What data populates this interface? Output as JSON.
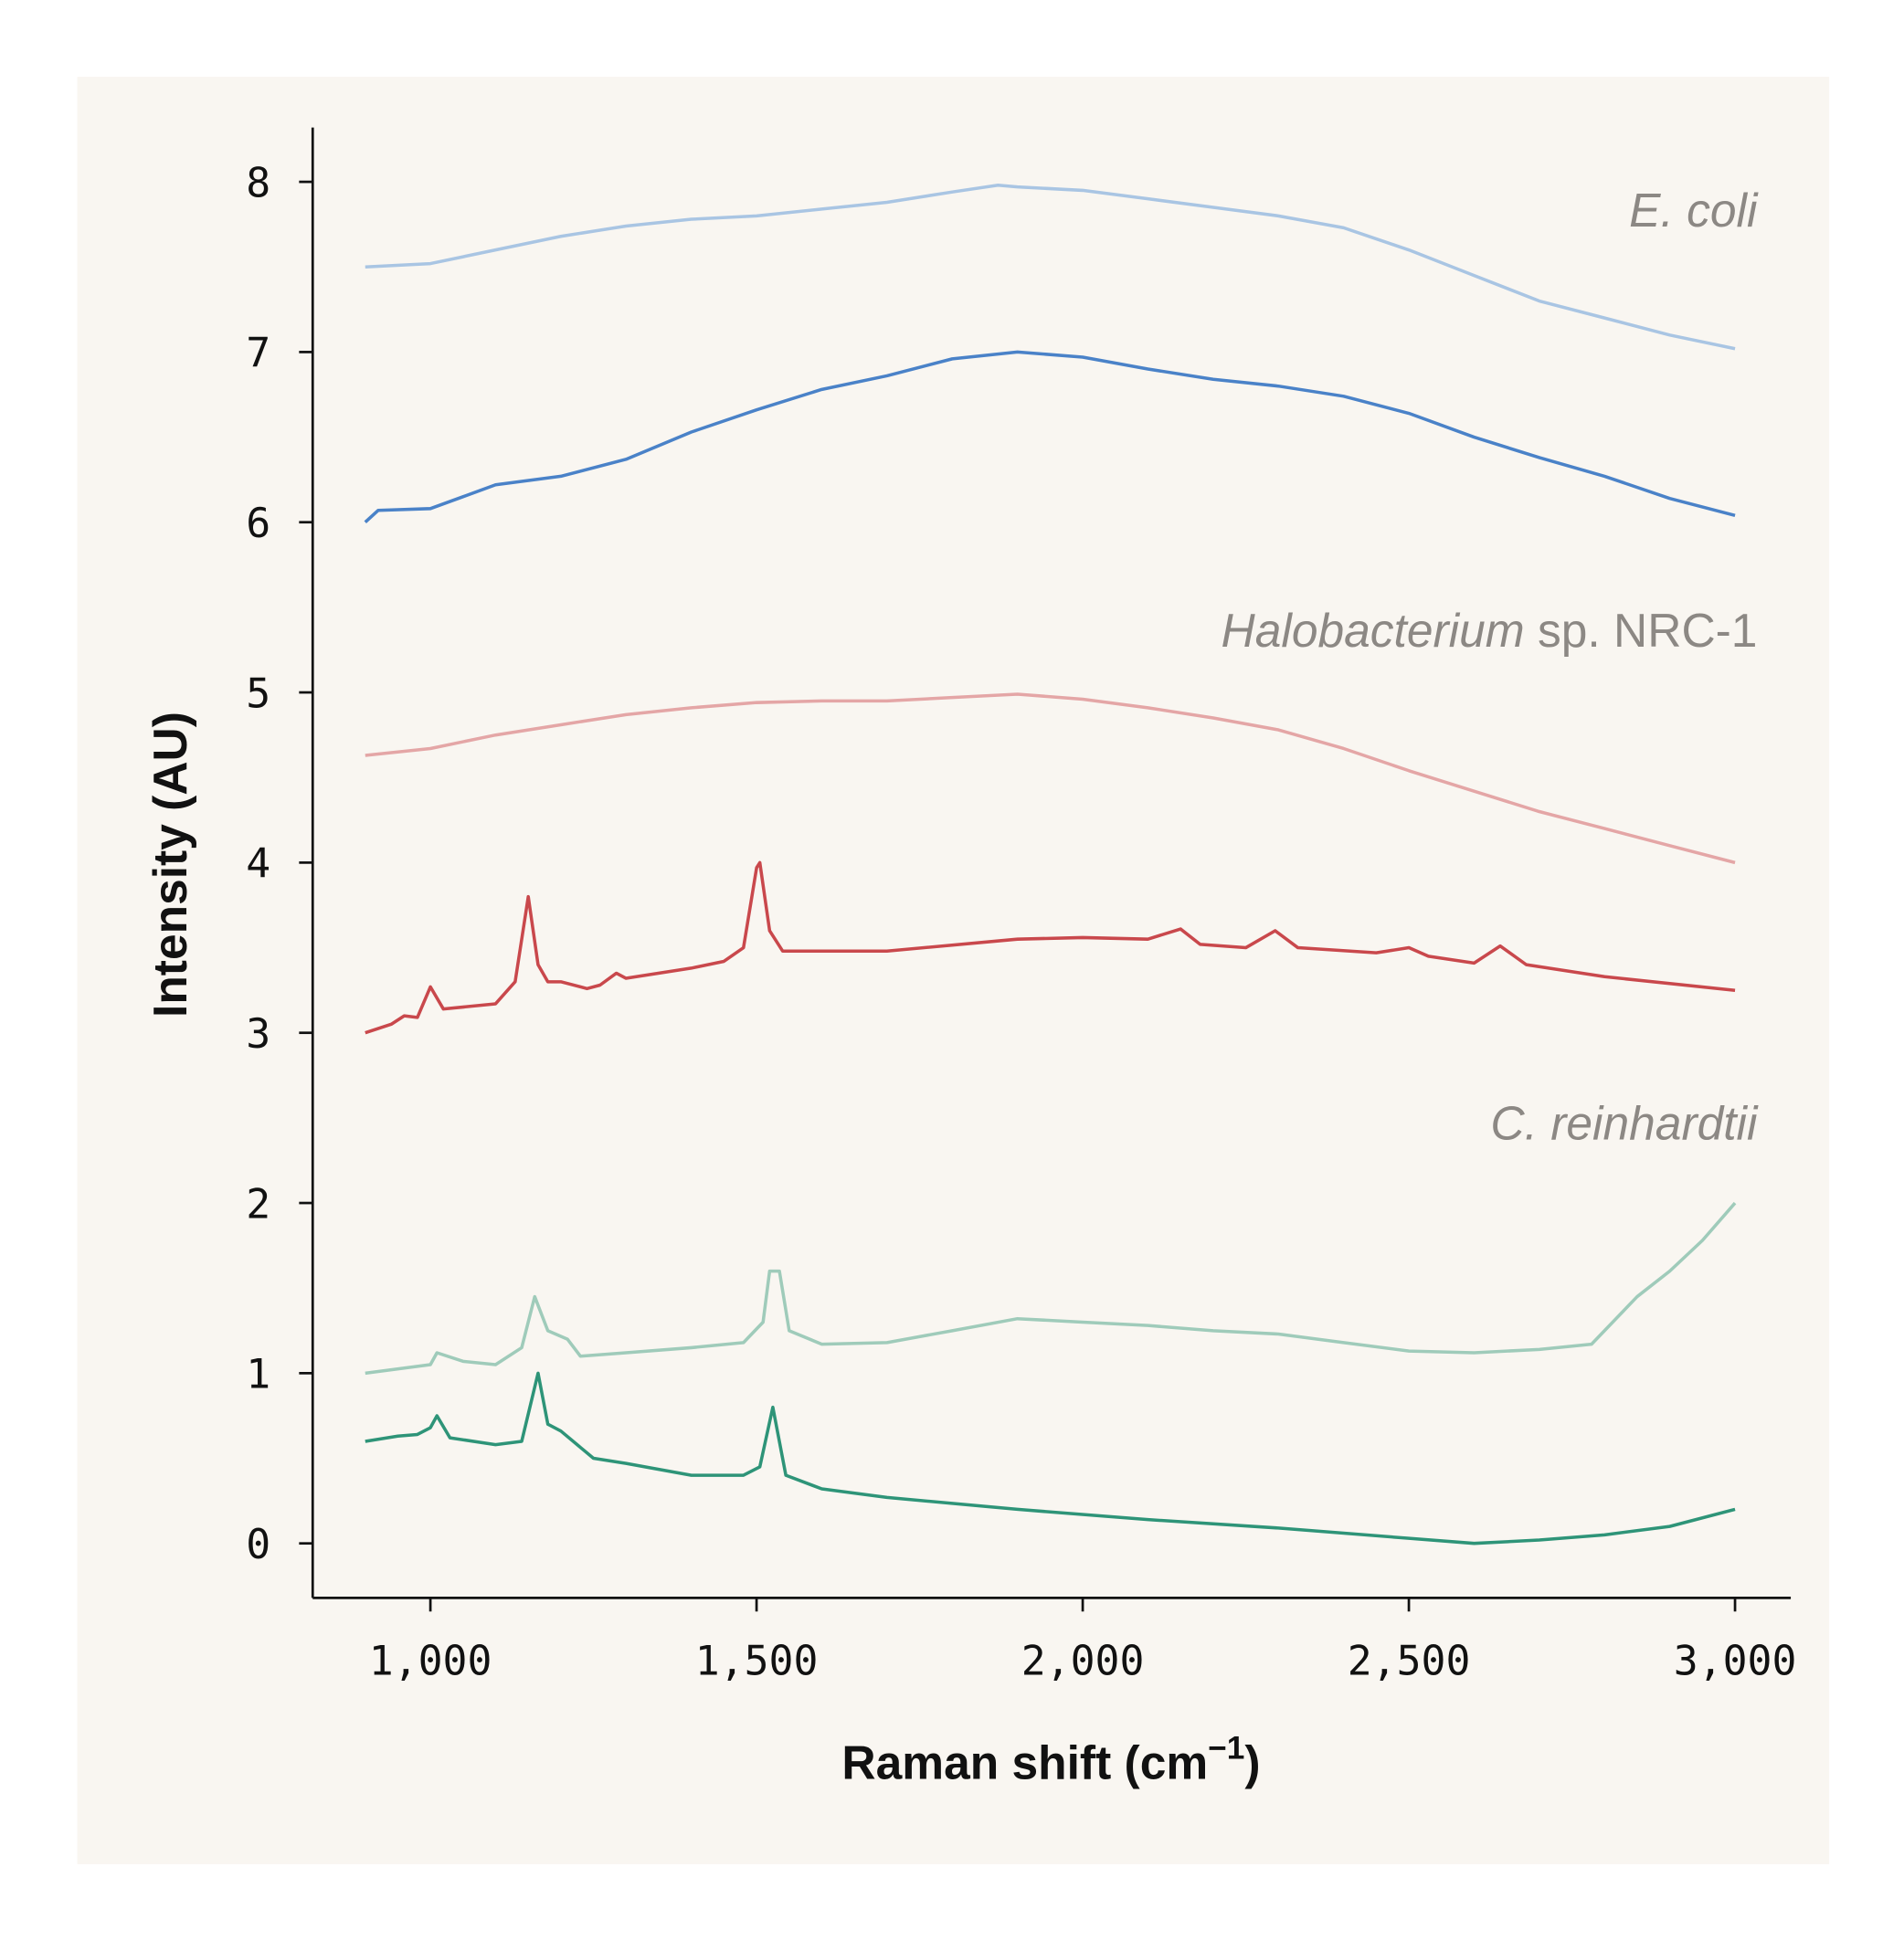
{
  "chart_data": {
    "type": "line",
    "xlabel": "Raman shift (cm",
    "xlabel_superscript": "−1",
    "xlabel_close": ")",
    "ylabel": "Intensity (AU)",
    "xlim": [
      820,
      3085
    ],
    "ylim": [
      -0.32,
      8.32
    ],
    "x_ticks": [
      1000,
      1500,
      2000,
      2500,
      3000
    ],
    "x_tick_labels": [
      "1,000",
      "1,500",
      "2,000",
      "2,500",
      "3,000"
    ],
    "y_ticks": [
      0,
      1,
      2,
      3,
      4,
      5,
      6,
      7,
      8
    ],
    "y_tick_labels": [
      "0",
      "1",
      "2",
      "3",
      "4",
      "5",
      "6",
      "7",
      "8"
    ],
    "grid": false,
    "background": "#f9f6f1",
    "annotations": [
      {
        "italic": "E. coli",
        "plain": "",
        "near_y": 7.8
      },
      {
        "italic": "Halobacterium",
        "plain": " sp. NRC-1",
        "near_y": 5.35
      },
      {
        "italic": "C. reinhardtii",
        "plain": "",
        "near_y": 2.45
      }
    ],
    "series": [
      {
        "color": "#a9c5e3",
        "x": [
          900,
          1000,
          1100,
          1200,
          1300,
          1400,
          1500,
          1600,
          1700,
          1800,
          1870,
          1900,
          2000,
          2100,
          2200,
          2300,
          2400,
          2500,
          2600,
          2700,
          2800,
          2900,
          3000
        ],
        "y": [
          7.5,
          7.52,
          7.6,
          7.68,
          7.74,
          7.78,
          7.8,
          7.84,
          7.88,
          7.94,
          7.98,
          7.97,
          7.95,
          7.9,
          7.85,
          7.8,
          7.73,
          7.6,
          7.45,
          7.3,
          7.2,
          7.1,
          7.02
        ]
      },
      {
        "color": "#4a82c8",
        "x": [
          900,
          920,
          1000,
          1050,
          1100,
          1200,
          1300,
          1400,
          1500,
          1600,
          1700,
          1800,
          1900,
          2000,
          2100,
          2200,
          2300,
          2400,
          2500,
          2600,
          2700,
          2800,
          2900,
          3000
        ],
        "y": [
          6.0,
          6.07,
          6.08,
          6.15,
          6.22,
          6.27,
          6.37,
          6.53,
          6.66,
          6.78,
          6.86,
          6.96,
          7.0,
          6.97,
          6.9,
          6.84,
          6.8,
          6.74,
          6.64,
          6.5,
          6.38,
          6.27,
          6.14,
          6.04
        ]
      },
      {
        "color": "#e4a6a6",
        "x": [
          900,
          1000,
          1100,
          1200,
          1300,
          1400,
          1500,
          1600,
          1700,
          1800,
          1900,
          2000,
          2100,
          2200,
          2300,
          2400,
          2500,
          2600,
          2700,
          2800,
          2900,
          3000
        ],
        "y": [
          4.63,
          4.67,
          4.75,
          4.81,
          4.87,
          4.91,
          4.94,
          4.95,
          4.95,
          4.97,
          4.99,
          4.96,
          4.91,
          4.85,
          4.78,
          4.67,
          4.54,
          4.42,
          4.3,
          4.2,
          4.1,
          4.0
        ]
      },
      {
        "color": "#c9484c",
        "x": [
          900,
          940,
          960,
          980,
          1000,
          1020,
          1100,
          1130,
          1150,
          1165,
          1180,
          1200,
          1240,
          1260,
          1285,
          1300,
          1400,
          1450,
          1480,
          1500,
          1505,
          1520,
          1540,
          1700,
          1900,
          2000,
          2100,
          2150,
          2180,
          2250,
          2295,
          2330,
          2450,
          2500,
          2530,
          2600,
          2640,
          2680,
          2800,
          3000
        ],
        "y": [
          3.0,
          3.05,
          3.1,
          3.09,
          3.27,
          3.14,
          3.17,
          3.3,
          3.8,
          3.4,
          3.3,
          3.3,
          3.26,
          3.28,
          3.35,
          3.32,
          3.38,
          3.42,
          3.5,
          3.97,
          4.0,
          3.6,
          3.48,
          3.48,
          3.55,
          3.56,
          3.55,
          3.61,
          3.52,
          3.5,
          3.6,
          3.5,
          3.47,
          3.5,
          3.45,
          3.41,
          3.51,
          3.4,
          3.33,
          3.25
        ]
      },
      {
        "color": "#9fcbba",
        "x": [
          900,
          1000,
          1010,
          1050,
          1100,
          1140,
          1160,
          1180,
          1210,
          1230,
          1300,
          1400,
          1480,
          1510,
          1520,
          1535,
          1550,
          1600,
          1700,
          1800,
          1900,
          2000,
          2100,
          2200,
          2300,
          2400,
          2500,
          2600,
          2700,
          2780,
          2850,
          2900,
          2950,
          3000
        ],
        "y": [
          1.0,
          1.05,
          1.12,
          1.07,
          1.05,
          1.15,
          1.45,
          1.25,
          1.2,
          1.1,
          1.12,
          1.15,
          1.18,
          1.3,
          1.6,
          1.6,
          1.25,
          1.17,
          1.18,
          1.25,
          1.32,
          1.3,
          1.28,
          1.25,
          1.23,
          1.18,
          1.13,
          1.12,
          1.14,
          1.17,
          1.45,
          1.6,
          1.78,
          2.0
        ]
      },
      {
        "color": "#2e9478",
        "x": [
          900,
          950,
          980,
          1000,
          1010,
          1030,
          1100,
          1140,
          1165,
          1180,
          1200,
          1250,
          1300,
          1400,
          1480,
          1505,
          1525,
          1545,
          1600,
          1700,
          1900,
          2100,
          2300,
          2500,
          2600,
          2700,
          2800,
          2900,
          3000
        ],
        "y": [
          0.6,
          0.63,
          0.64,
          0.68,
          0.75,
          0.62,
          0.58,
          0.6,
          1.0,
          0.7,
          0.66,
          0.5,
          0.47,
          0.4,
          0.4,
          0.45,
          0.8,
          0.4,
          0.32,
          0.27,
          0.2,
          0.14,
          0.09,
          0.03,
          0.0,
          0.02,
          0.05,
          0.1,
          0.2
        ]
      }
    ]
  }
}
